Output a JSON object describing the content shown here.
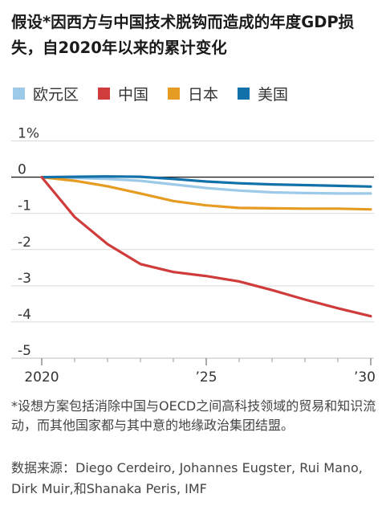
{
  "chart_data": {
    "type": "line",
    "title": "假设*因西方与中国技术脱钩而造成的年度GDP损失，自2020年以来的累计变化",
    "ylabel": "",
    "xlabel": "",
    "x": [
      2020,
      2021,
      2022,
      2023,
      2024,
      2025,
      2026,
      2027,
      2028,
      2029,
      2030
    ],
    "x_ticks": [
      2020,
      2025,
      2030
    ],
    "x_tick_labels": [
      "2020",
      "’25",
      "’30"
    ],
    "y_ticks": [
      1,
      0,
      -1,
      -2,
      -3,
      -4,
      -5
    ],
    "y_tick_labels": [
      "1%",
      "0",
      "-1",
      "-2",
      "-3",
      "-4",
      "-5"
    ],
    "ylim": [
      -5,
      1
    ],
    "xlim": [
      2020,
      2030
    ],
    "grid": true,
    "legend_position": "top",
    "series": [
      {
        "name": "欧元区",
        "color": "#9ecae9",
        "values": [
          0,
          -0.02,
          -0.05,
          -0.1,
          -0.2,
          -0.3,
          -0.37,
          -0.42,
          -0.44,
          -0.45,
          -0.45
        ]
      },
      {
        "name": "中国",
        "color": "#d03b3b",
        "values": [
          0,
          -1.1,
          -1.85,
          -2.4,
          -2.62,
          -2.73,
          -2.88,
          -3.12,
          -3.38,
          -3.62,
          -3.84
        ]
      },
      {
        "name": "日本",
        "color": "#e69b22",
        "values": [
          0,
          -0.1,
          -0.25,
          -0.45,
          -0.66,
          -0.78,
          -0.85,
          -0.86,
          -0.87,
          -0.87,
          -0.89
        ]
      },
      {
        "name": "美国",
        "color": "#1271a8",
        "values": [
          0,
          0.01,
          0.02,
          0.01,
          -0.05,
          -0.12,
          -0.17,
          -0.2,
          -0.22,
          -0.24,
          -0.26
        ]
      }
    ],
    "footnote": "*设想方案包括消除中国与OECD之间高科技领域的贸易和知识流动，而其他国家都与其中意的地缘政治集团结盟。",
    "source": "数据来源：Diego Cerdeiro, Johannes Eugster, Rui Mano, Dirk Muir,和Shanaka Peris, IMF"
  }
}
